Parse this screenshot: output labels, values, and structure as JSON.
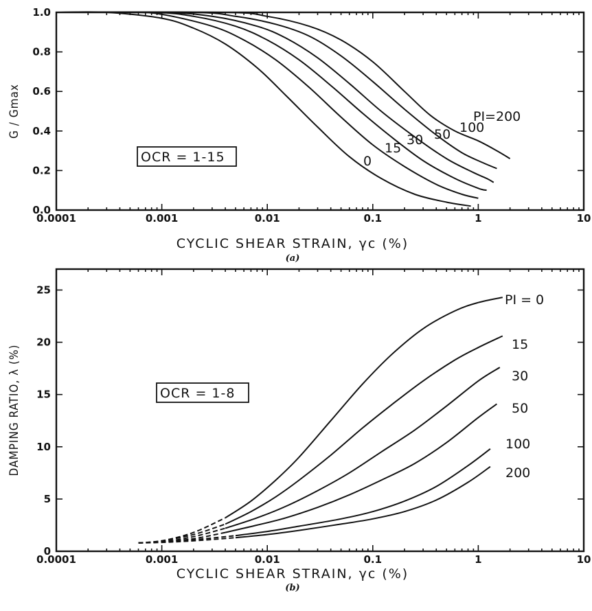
{
  "chart_data": [
    {
      "panel_label": "(a)",
      "type": "line",
      "xscale": "log",
      "xlim": [
        0.0001,
        10
      ],
      "ylim": [
        0.0,
        1.0
      ],
      "xlabel": "CYCLIC SHEAR STRAIN, γc (%)",
      "ylabel": "G / Gmax",
      "xticks": [
        "0.0001",
        "0.001",
        "0.01",
        "0.1",
        "1",
        "10"
      ],
      "yticks": [
        "0.0",
        "0.2",
        "0.4",
        "0.6",
        "0.8",
        "1.0"
      ],
      "annotation": "OCR = 1-15",
      "grid": false,
      "series": [
        {
          "name": "0",
          "x": [
            0.0001,
            0.0003,
            0.001,
            0.002,
            0.004,
            0.008,
            0.015,
            0.03,
            0.06,
            0.12,
            0.25,
            0.5,
            0.85
          ],
          "y": [
            1.0,
            1.0,
            0.97,
            0.92,
            0.84,
            0.72,
            0.58,
            0.42,
            0.27,
            0.16,
            0.08,
            0.04,
            0.02
          ]
        },
        {
          "name": "15",
          "x": [
            0.0001,
            0.0005,
            0.001,
            0.003,
            0.006,
            0.012,
            0.025,
            0.05,
            0.1,
            0.2,
            0.4,
            0.7,
            1.0
          ],
          "y": [
            1.0,
            1.0,
            0.99,
            0.93,
            0.86,
            0.76,
            0.62,
            0.47,
            0.33,
            0.22,
            0.13,
            0.08,
            0.06
          ]
        },
        {
          "name": "30",
          "x": [
            0.0001,
            0.0008,
            0.002,
            0.005,
            0.01,
            0.02,
            0.04,
            0.08,
            0.15,
            0.3,
            0.6,
            1.0,
            1.2
          ],
          "y": [
            1.0,
            1.0,
            0.98,
            0.93,
            0.86,
            0.76,
            0.63,
            0.49,
            0.37,
            0.25,
            0.16,
            0.11,
            0.1
          ]
        },
        {
          "name": "50",
          "x": [
            0.0001,
            0.001,
            0.003,
            0.008,
            0.015,
            0.03,
            0.06,
            0.12,
            0.25,
            0.5,
            0.9,
            1.2,
            1.4
          ],
          "y": [
            1.0,
            1.0,
            0.98,
            0.93,
            0.87,
            0.77,
            0.64,
            0.5,
            0.37,
            0.26,
            0.19,
            0.16,
            0.14
          ]
        },
        {
          "name": "100",
          "x": [
            0.0001,
            0.002,
            0.005,
            0.012,
            0.025,
            0.05,
            0.1,
            0.2,
            0.4,
            0.7,
            1.1,
            1.5
          ],
          "y": [
            1.0,
            1.0,
            0.98,
            0.94,
            0.88,
            0.78,
            0.65,
            0.51,
            0.38,
            0.29,
            0.24,
            0.21
          ]
        },
        {
          "name": "PI=200",
          "x": [
            0.0001,
            0.004,
            0.01,
            0.025,
            0.05,
            0.1,
            0.2,
            0.35,
            0.6,
            1.0,
            1.5,
            2.0
          ],
          "y": [
            1.0,
            1.0,
            0.98,
            0.93,
            0.86,
            0.75,
            0.6,
            0.48,
            0.4,
            0.35,
            0.3,
            0.26
          ]
        }
      ]
    },
    {
      "panel_label": "(b)",
      "type": "line",
      "xscale": "log",
      "xlim": [
        0.0001,
        10
      ],
      "ylim": [
        0,
        27
      ],
      "xlabel": "CYCLIC SHEAR STRAIN, γc (%)",
      "ylabel": "DAMPING RATIO, λ (%)",
      "xticks": [
        "0.0001",
        "0.001",
        "0.01",
        "0.1",
        "1",
        "10"
      ],
      "yticks": [
        "0",
        "5",
        "10",
        "15",
        "20",
        "25"
      ],
      "annotation": "OCR = 1-8",
      "grid": false,
      "series": [
        {
          "name": "PI = 0",
          "x": [
            0.0006,
            0.001,
            0.002,
            0.004,
            0.007,
            0.012,
            0.02,
            0.04,
            0.08,
            0.15,
            0.3,
            0.6,
            1.0,
            1.7
          ],
          "y": [
            0.8,
            1.0,
            1.8,
            3.2,
            4.8,
            6.8,
            9.0,
            12.5,
            16.0,
            18.8,
            21.3,
            23.0,
            23.8,
            24.3
          ]
        },
        {
          "name": "15",
          "x": [
            0.0006,
            0.001,
            0.002,
            0.004,
            0.007,
            0.012,
            0.02,
            0.04,
            0.08,
            0.15,
            0.3,
            0.6,
            1.0,
            1.7
          ],
          "y": [
            0.8,
            1.0,
            1.6,
            2.6,
            3.8,
            5.2,
            6.8,
            9.2,
            11.8,
            14.0,
            16.3,
            18.3,
            19.5,
            20.6
          ]
        },
        {
          "name": "30",
          "x": [
            0.0006,
            0.001,
            0.002,
            0.004,
            0.008,
            0.015,
            0.03,
            0.06,
            0.12,
            0.25,
            0.5,
            1.0,
            1.6
          ],
          "y": [
            0.8,
            0.9,
            1.4,
            2.2,
            3.2,
            4.3,
            5.8,
            7.5,
            9.5,
            11.6,
            13.9,
            16.3,
            17.6
          ]
        },
        {
          "name": "50",
          "x": [
            0.0006,
            0.001,
            0.002,
            0.004,
            0.008,
            0.015,
            0.03,
            0.06,
            0.12,
            0.25,
            0.5,
            1.0,
            1.5
          ],
          "y": [
            0.8,
            0.9,
            1.2,
            1.8,
            2.5,
            3.2,
            4.2,
            5.4,
            6.8,
            8.4,
            10.4,
            12.8,
            14.1
          ]
        },
        {
          "name": "100",
          "x": [
            0.0006,
            0.001,
            0.002,
            0.005,
            0.01,
            0.02,
            0.05,
            0.1,
            0.2,
            0.4,
            0.8,
            1.3
          ],
          "y": [
            0.8,
            0.9,
            1.1,
            1.5,
            1.9,
            2.4,
            3.1,
            3.8,
            4.8,
            6.2,
            8.2,
            9.8
          ]
        },
        {
          "name": "200",
          "x": [
            0.0006,
            0.001,
            0.002,
            0.005,
            0.01,
            0.02,
            0.05,
            0.1,
            0.2,
            0.4,
            0.8,
            1.3
          ],
          "y": [
            0.8,
            0.85,
            1.0,
            1.3,
            1.6,
            2.0,
            2.6,
            3.1,
            3.8,
            4.9,
            6.6,
            8.1
          ]
        }
      ]
    }
  ]
}
